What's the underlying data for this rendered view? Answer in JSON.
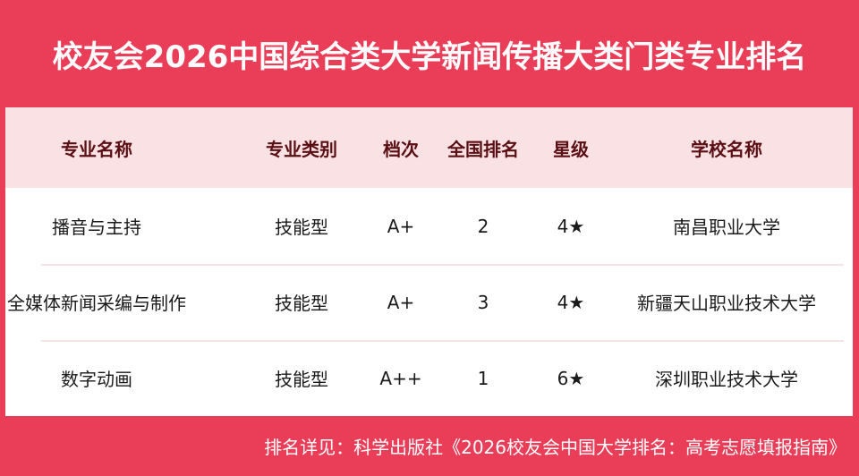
{
  "title": "校友会2026中国综合类大学新闻传播大类门类专业排名",
  "colors": {
    "background": "#e93d58",
    "header_bg": "#f9e1e4",
    "header_text": "#5a0f14"
  },
  "table": {
    "headers": [
      "专业名称",
      "专业类别",
      "档次",
      "全国排名",
      "星级",
      "学校名称"
    ],
    "rows": [
      [
        "播音与主持",
        "技能型",
        "A+",
        "2",
        "4★",
        "南昌职业大学"
      ],
      [
        "全媒体新闻采编与制作",
        "技能型",
        "A+",
        "3",
        "4★",
        "新疆天山职业技术大学"
      ],
      [
        "数字动画",
        "技能型",
        "A++",
        "1",
        "6★",
        "深圳职业技术大学"
      ]
    ]
  },
  "footer": "排名详见：科学出版社《2026校友会中国大学排名：高考志愿填报指南》"
}
